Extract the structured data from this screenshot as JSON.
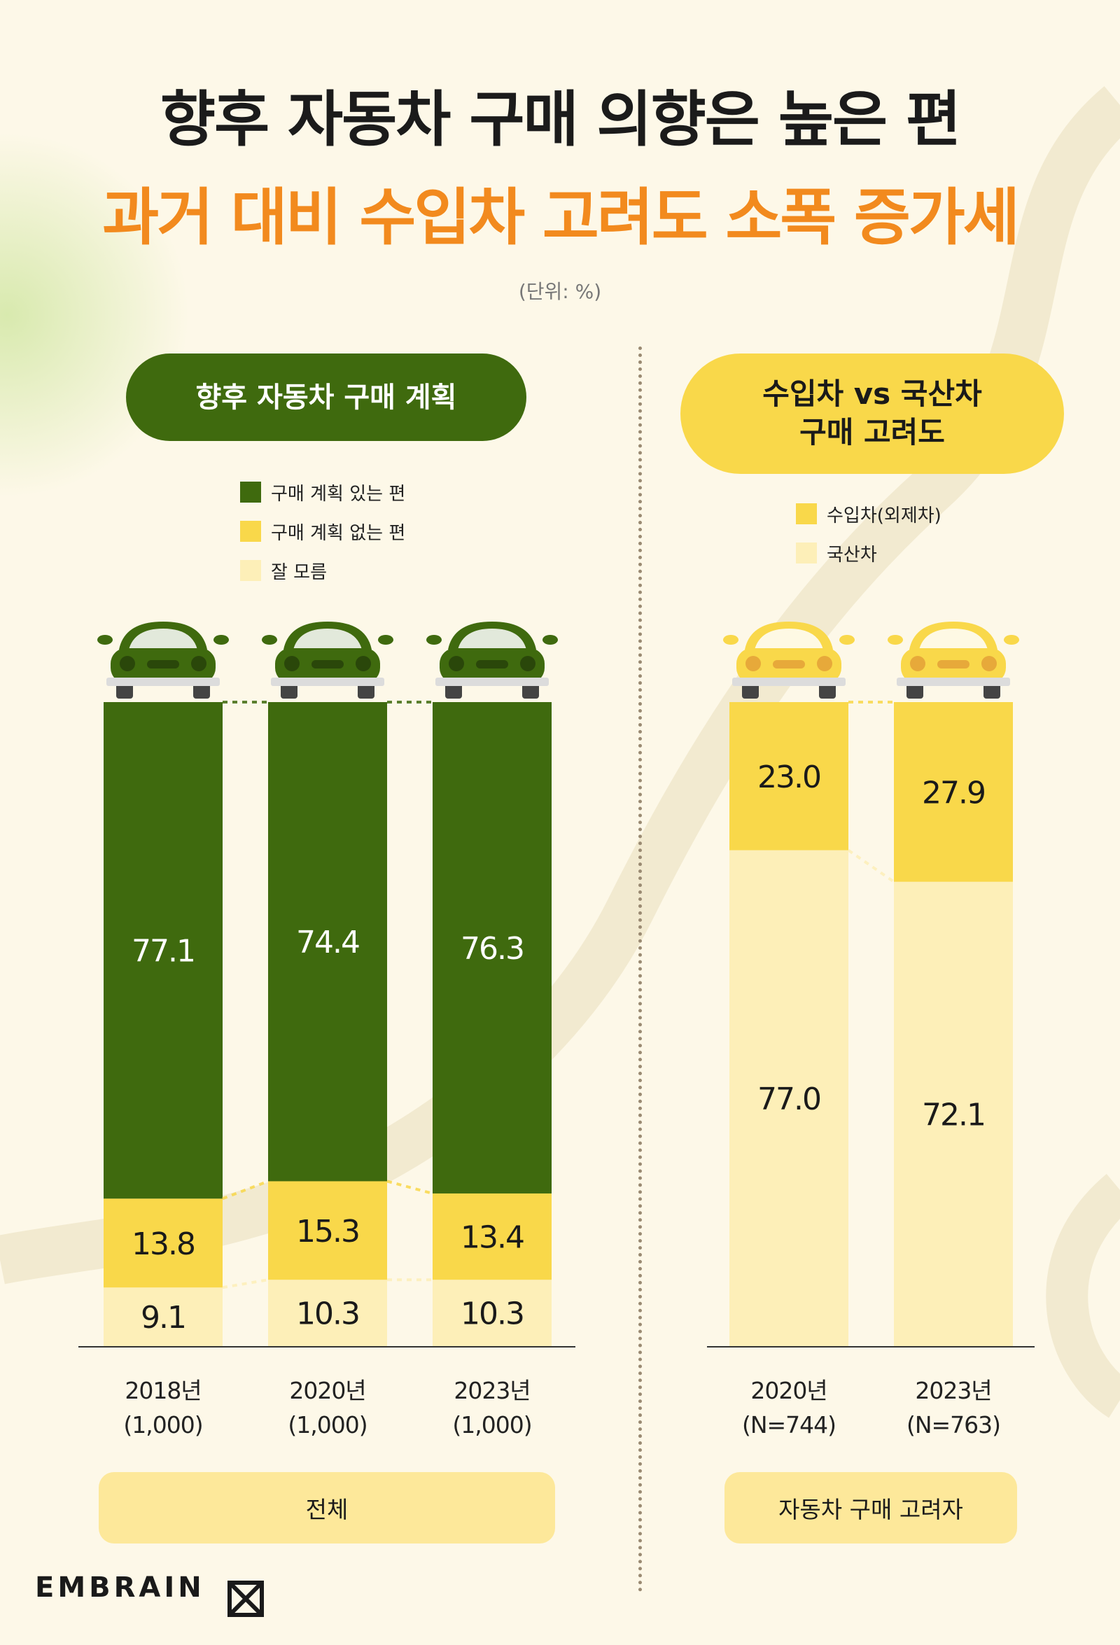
{
  "header": {
    "title_line1": "향후 자동차 구매 의향은 높은 편",
    "title_line2": "과거 대비 수입차 고려도 소폭 증가세",
    "unit": "(단위: %)"
  },
  "colors": {
    "background": "#fdf8e8",
    "dark_green": "#3f6a0e",
    "yellow": "#f9d84a",
    "light_yellow": "#fdefb8",
    "orange": "#f28a1e"
  },
  "left_panel": {
    "pill": "향후 자동차 구매 계획",
    "legend": [
      {
        "label": "구매 계획 있는 편",
        "color": "#3f6a0e"
      },
      {
        "label": "구매 계획 없는 편",
        "color": "#f9d84a"
      },
      {
        "label": "잘 모름",
        "color": "#fdefb8"
      }
    ],
    "sub_label": "전체"
  },
  "right_panel": {
    "pill_line1": "수입차 vs 국산차",
    "pill_line2": "구매 고려도",
    "legend": [
      {
        "label": "수입차(외제차)",
        "color": "#f9d84a"
      },
      {
        "label": "국산차",
        "color": "#fdefb8"
      }
    ],
    "sub_label": "자동차 구매 고려자"
  },
  "logo": "EMBRAIN",
  "chart_data": [
    {
      "type": "bar",
      "stacked": true,
      "categories": [
        "2018년",
        "2020년",
        "2023년"
      ],
      "category_sublabels": [
        "(1,000)",
        "(1,000)",
        "(1,000)"
      ],
      "series": [
        {
          "name": "구매 계획 있는 편",
          "values": [
            "77.1",
            "74.4",
            "76.3"
          ],
          "color": "#3f6a0e",
          "text_color": "#ffffff"
        },
        {
          "name": "구매 계획 없는 편",
          "values": [
            "13.8",
            "15.3",
            "13.4"
          ],
          "color": "#f9d84a",
          "text_color": "#1a1a1a"
        },
        {
          "name": "잘 모름",
          "values": [
            "9.1",
            "10.3",
            "10.3"
          ],
          "color": "#fdefb8",
          "text_color": "#1a1a1a"
        }
      ],
      "ylim": [
        0,
        100
      ],
      "legend": "top"
    },
    {
      "type": "bar",
      "stacked": true,
      "categories": [
        "2020년",
        "2023년"
      ],
      "category_sublabels": [
        "(N=744)",
        "(N=763)"
      ],
      "series": [
        {
          "name": "수입차(외제차)",
          "values": [
            "23.0",
            "27.9"
          ],
          "color": "#f9d84a",
          "text_color": "#1a1a1a"
        },
        {
          "name": "국산차",
          "values": [
            "77.0",
            "72.1"
          ],
          "color": "#fdefb8",
          "text_color": "#1a1a1a"
        }
      ],
      "ylim": [
        0,
        100
      ],
      "legend": "top"
    }
  ]
}
